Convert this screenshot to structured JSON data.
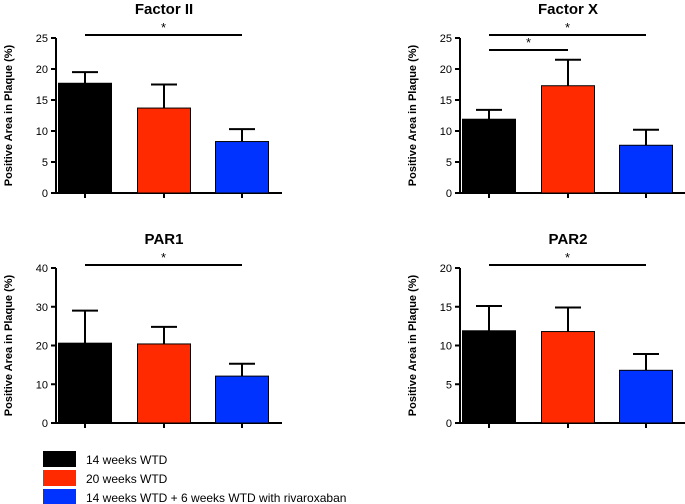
{
  "chart_data": [
    {
      "type": "bar",
      "title": "Factor II",
      "ylabel": "Positive Area in Plaque (%)",
      "ylim": [
        0,
        25
      ],
      "yticks": [
        0,
        5,
        10,
        15,
        20,
        25
      ],
      "groups": [
        "14 weeks WTD",
        "20 weeks WTD",
        "14 weeks WTD + 6  weeks WTD with rivaroxaban"
      ],
      "values": [
        17.7,
        13.7,
        8.3
      ],
      "errors": [
        1.8,
        3.8,
        2.0
      ],
      "significance": [
        {
          "from": 0,
          "to": 2,
          "label": "*"
        }
      ]
    },
    {
      "type": "bar",
      "title": "Factor X",
      "ylabel": "Positive Area in Plaque (%)",
      "ylim": [
        0,
        25
      ],
      "yticks": [
        0,
        5,
        10,
        15,
        20,
        25
      ],
      "groups": [
        "14 weeks WTD",
        "20 weeks WTD",
        "14 weeks WTD + 6  weeks WTD with rivaroxaban"
      ],
      "values": [
        11.9,
        17.3,
        7.7
      ],
      "errors": [
        1.5,
        4.2,
        2.5
      ],
      "significance": [
        {
          "from": 0,
          "to": 1,
          "label": "*"
        },
        {
          "from": 0,
          "to": 2,
          "label": "*"
        }
      ]
    },
    {
      "type": "bar",
      "title": "PAR1",
      "ylabel": "Positive Area in Plaque (%)",
      "ylim": [
        0,
        40
      ],
      "yticks": [
        0,
        10,
        20,
        30,
        40
      ],
      "groups": [
        "14 weeks WTD",
        "20 weeks WTD",
        "14 weeks WTD + 6  weeks WTD with rivaroxaban"
      ],
      "values": [
        20.6,
        20.4,
        12.1
      ],
      "errors": [
        8.4,
        4.4,
        3.2
      ],
      "significance": [
        {
          "from": 0,
          "to": 2,
          "label": "*"
        }
      ]
    },
    {
      "type": "bar",
      "title": "PAR2",
      "ylabel": "Positive Area in Plaque (%)",
      "ylim": [
        0,
        20
      ],
      "yticks": [
        0,
        5,
        10,
        15,
        20
      ],
      "groups": [
        "14 weeks WTD",
        "20 weeks WTD",
        "14 weeks WTD + 6  weeks WTD with rivaroxaban"
      ],
      "values": [
        11.9,
        11.8,
        6.8
      ],
      "errors": [
        3.2,
        3.1,
        2.1
      ],
      "significance": [
        {
          "from": 0,
          "to": 2,
          "label": "*"
        }
      ]
    }
  ],
  "legend": [
    {
      "label": "14 weeks WTD",
      "color": "#000000"
    },
    {
      "label": "20 weeks WTD",
      "color": "#ff2a00"
    },
    {
      "label": "14 weeks WTD + 6  weeks WTD with rivaroxaban",
      "color": "#0033ff"
    }
  ]
}
